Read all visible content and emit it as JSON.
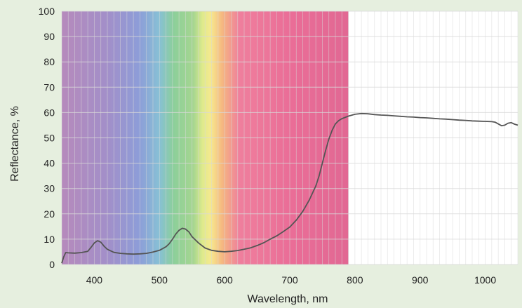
{
  "chart_data": {
    "type": "line",
    "title": "",
    "xlabel": "Wavelength, nm",
    "ylabel": "Reflectance, %",
    "xlim": [
      350,
      1050
    ],
    "ylim": [
      0,
      100
    ],
    "x_ticks": [
      400,
      500,
      600,
      700,
      800,
      900,
      1000
    ],
    "y_ticks": [
      0,
      10,
      20,
      30,
      40,
      50,
      60,
      70,
      80,
      90,
      100
    ],
    "grid": true,
    "legend": "none",
    "visible_spectrum_background": true,
    "spectrum_range": [
      350,
      790
    ],
    "colors": {
      "line": "#555555",
      "page_background": "#e6efdf",
      "plot_background": "#ffffff",
      "grid": "#d8d8d8"
    },
    "series": [
      {
        "x": [
          350,
          353,
          356,
          360,
          370,
          380,
          390,
          395,
          400,
          405,
          410,
          415,
          420,
          430,
          440,
          450,
          460,
          470,
          480,
          490,
          500,
          510,
          515,
          520,
          525,
          530,
          535,
          540,
          545,
          550,
          560,
          570,
          580,
          590,
          600,
          610,
          620,
          630,
          640,
          650,
          660,
          670,
          680,
          690,
          700,
          710,
          720,
          730,
          740,
          745,
          750,
          755,
          760,
          765,
          770,
          775,
          780,
          790,
          800,
          810,
          820,
          830,
          840,
          850,
          860,
          870,
          880,
          890,
          900,
          910,
          920,
          930,
          940,
          950,
          960,
          970,
          980,
          990,
          1000,
          1010,
          1015,
          1020,
          1025,
          1030,
          1035,
          1040,
          1045,
          1050
        ],
        "values": [
          0.5,
          3,
          4.7,
          4.6,
          4.5,
          4.7,
          5.2,
          6.8,
          8.5,
          9.4,
          8.8,
          7.2,
          6.0,
          4.8,
          4.4,
          4.2,
          4.1,
          4.2,
          4.4,
          4.9,
          5.6,
          7.0,
          8.2,
          10.0,
          12.0,
          13.5,
          14.3,
          14.0,
          12.9,
          11.0,
          8.5,
          6.5,
          5.6,
          5.2,
          5.0,
          5.2,
          5.5,
          6.0,
          6.6,
          7.5,
          8.6,
          10.0,
          11.3,
          13.0,
          14.8,
          17.5,
          21.0,
          25.5,
          31.0,
          35.0,
          40.0,
          45.0,
          49.5,
          53.0,
          55.5,
          56.8,
          57.6,
          58.6,
          59.3,
          59.6,
          59.5,
          59.2,
          59.0,
          58.9,
          58.7,
          58.5,
          58.3,
          58.2,
          58.0,
          57.9,
          57.7,
          57.5,
          57.4,
          57.2,
          57.0,
          56.9,
          56.7,
          56.6,
          56.5,
          56.4,
          56.2,
          55.5,
          54.8,
          55.0,
          55.8,
          56.0,
          55.4,
          55.0
        ]
      }
    ]
  }
}
